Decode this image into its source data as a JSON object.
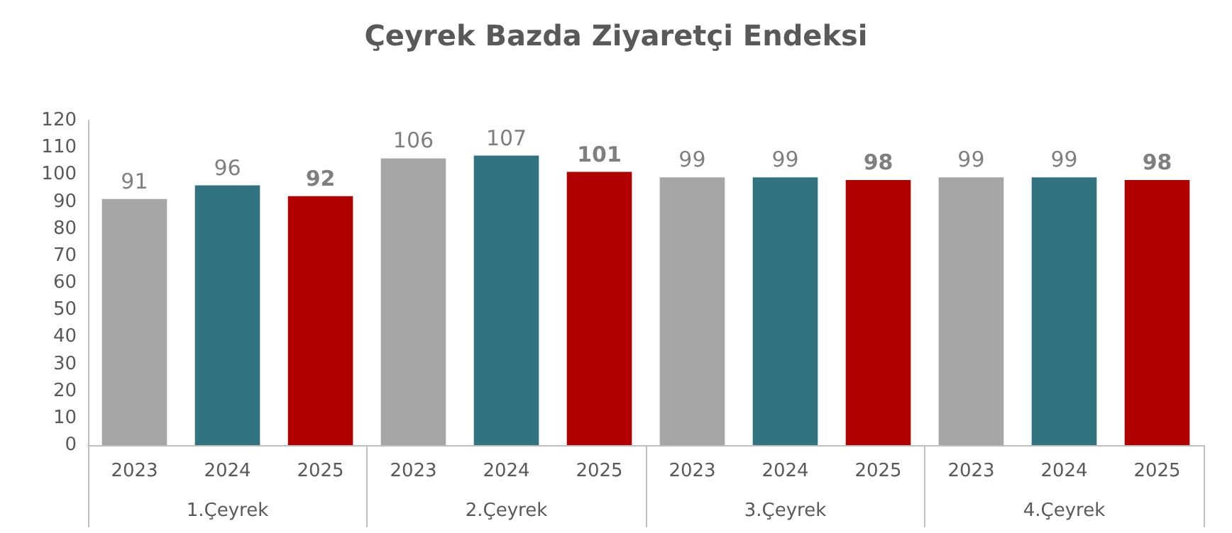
{
  "chart_data": {
    "type": "bar",
    "title": "Çeyrek Bazda Ziyaretçi Endeksi",
    "categories": [
      "1.Çeyrek",
      "2.Çeyrek",
      "3.Çeyrek",
      "4.Çeyrek"
    ],
    "series": [
      {
        "name": "2023",
        "color": "#a6a6a6",
        "values": [
          91,
          106,
          99,
          99
        ]
      },
      {
        "name": "2024",
        "color": "#31737f",
        "values": [
          96,
          107,
          99,
          99
        ]
      },
      {
        "name": "2025",
        "color": "#b00000",
        "values": [
          92,
          101,
          98,
          98
        ]
      }
    ],
    "ylim": [
      0,
      120
    ],
    "yticks": [
      0,
      10,
      20,
      30,
      40,
      50,
      60,
      70,
      80,
      90,
      100,
      110,
      120
    ],
    "data_labels": true,
    "grid": false,
    "legend": false
  }
}
